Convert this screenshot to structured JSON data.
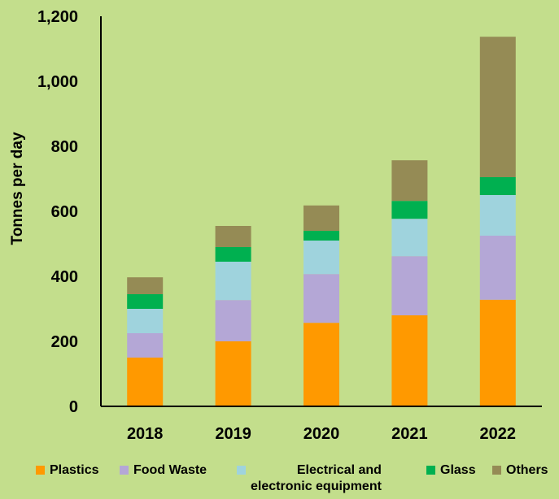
{
  "chart_data": {
    "type": "bar",
    "stacked": true,
    "categories": [
      "2018",
      "2019",
      "2020",
      "2021",
      "2022"
    ],
    "ylabel": "Tonnes per day",
    "ylim": [
      0,
      1200
    ],
    "yticks": [
      "0",
      "200",
      "400",
      "600",
      "800",
      "1,000",
      "1,200"
    ],
    "grid": false,
    "legend_position": "bottom",
    "series": [
      {
        "name": "Plastics",
        "color": "#ff9900",
        "values": [
          150,
          200,
          257,
          280,
          328
        ]
      },
      {
        "name": "Food Waste",
        "color": "#b4a7d6",
        "values": [
          75,
          127,
          150,
          182,
          197
        ]
      },
      {
        "name": "Electrical and\nelectronic equipment",
        "color": "#9fd3dd",
        "values": [
          75,
          118,
          103,
          115,
          125
        ]
      },
      {
        "name": "Glass",
        "color": "#00b050",
        "values": [
          45,
          45,
          30,
          55,
          55
        ]
      },
      {
        "name": "Others",
        "color": "#958b55",
        "values": [
          52,
          65,
          78,
          125,
          432
        ]
      }
    ]
  }
}
